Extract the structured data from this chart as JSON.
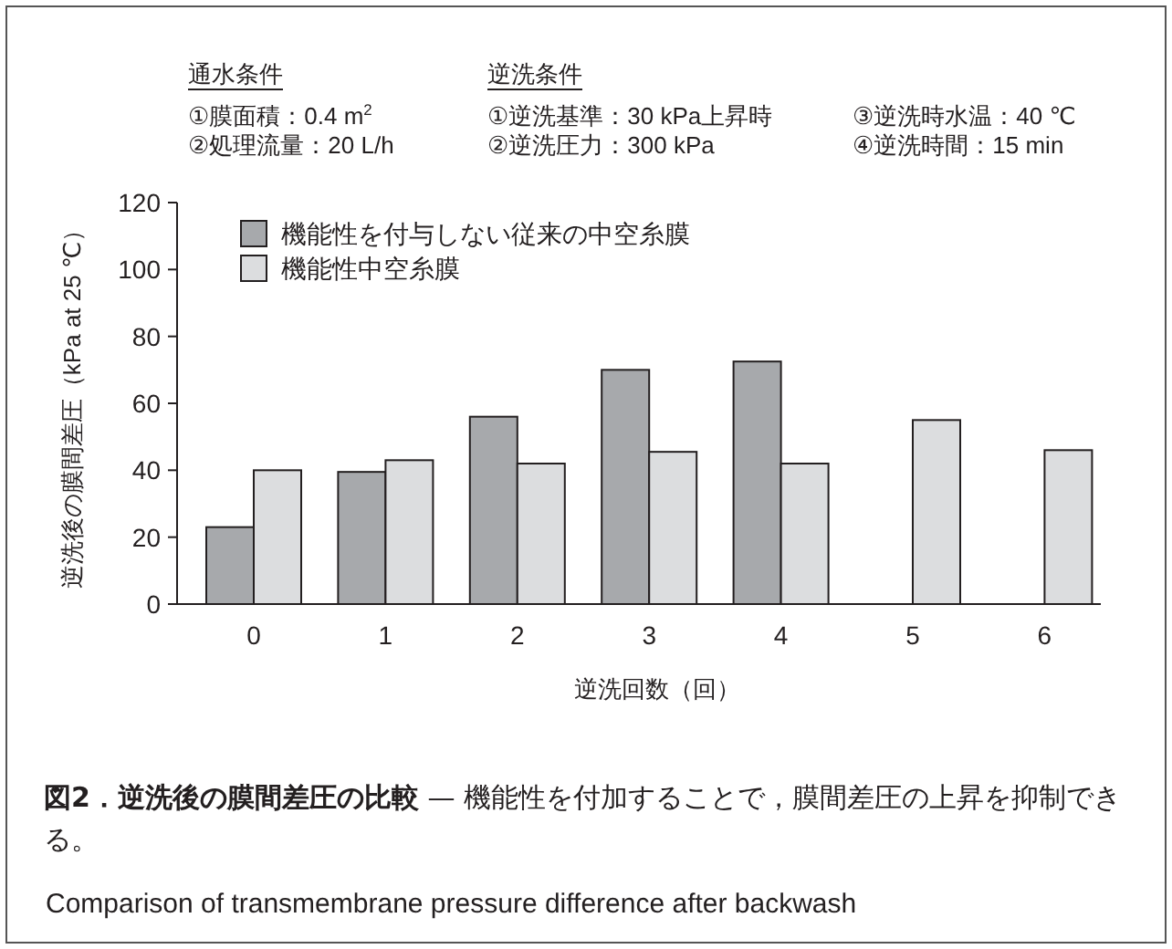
{
  "chart_data": {
    "type": "bar",
    "title": "**図2．逆洗後の膜間差圧の比較** — 機能性を付加することで，膜間差圧の上昇を抑制できる。",
    "subtitle": "Comparison of transmembrane pressure difference after backwash",
    "xlabel": "逆洗回数（回）",
    "ylabel": "逆洗後の膜間差圧（kPa at 25 ℃）",
    "annotations": [
      "通水条件",
      "①膜面積：0.4 m$^{2}$",
      "②処理流量：20 L/h",
      "逆洗条件",
      "①逆洗基準：30 kPa上昇時",
      "②逆洗圧力：300 kPa",
      "③逆洗時水温：40 ℃",
      "④逆洗時間：15 min"
    ],
    "categories": [
      "0",
      "1",
      "2",
      "3",
      "4",
      "5",
      "6"
    ],
    "series": [
      {
        "name": "機能性を付与しない従来の中空糸膜",
        "color": "#a7a9ac",
        "values": [
          23,
          39.5,
          56,
          70,
          72.5,
          null,
          null
        ]
      },
      {
        "name": "機能性中空糸膜",
        "color": "#dcdddf",
        "values": [
          40,
          43,
          42,
          45.5,
          42,
          55,
          46
        ]
      }
    ],
    "ylim": [
      0,
      120
    ],
    "yticks": [
      0,
      20,
      40,
      60,
      80,
      100,
      120
    ],
    "grid": false,
    "legend": "top left"
  }
}
